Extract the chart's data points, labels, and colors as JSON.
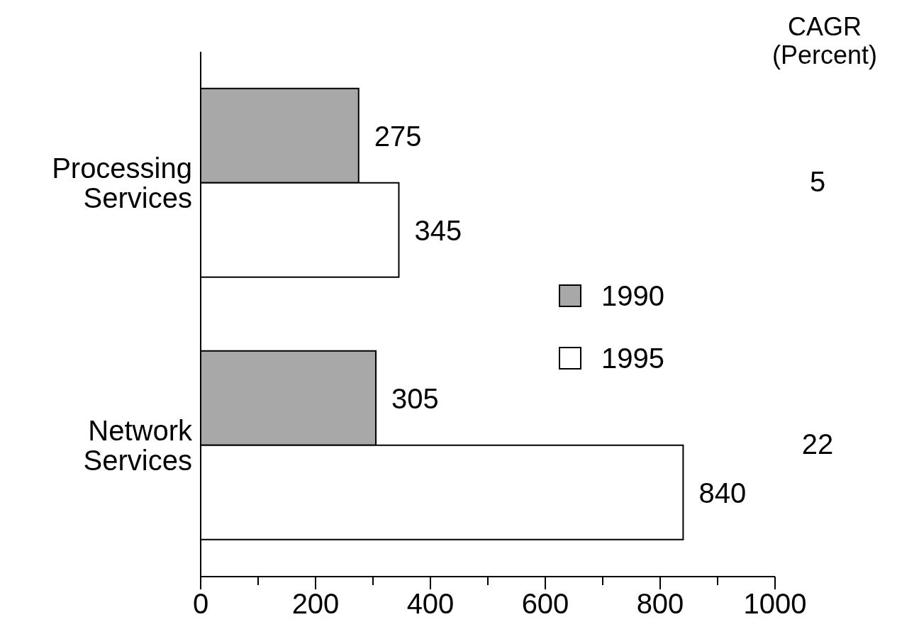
{
  "chart_data": {
    "type": "bar",
    "orientation": "horizontal",
    "categories": [
      "Processing Services",
      "Network Services"
    ],
    "series": [
      {
        "name": "1990",
        "color": "#a8a8a8",
        "values": [
          275,
          305
        ]
      },
      {
        "name": "1995",
        "color": "#ffffff",
        "values": [
          345,
          840
        ]
      }
    ],
    "xlim": [
      0,
      1000
    ],
    "xticks": [
      0,
      {
        "value": 100,
        "label": null
      },
      200,
      {
        "value": 300,
        "label": null
      },
      400,
      {
        "value": 500,
        "label": null
      },
      600,
      {
        "value": 700,
        "label": null
      },
      800,
      {
        "value": 900,
        "label": null
      },
      1000
    ],
    "data_labels": true,
    "legend": "right",
    "annotations": [
      "CAGR (Percent)",
      "5",
      "22"
    ]
  }
}
